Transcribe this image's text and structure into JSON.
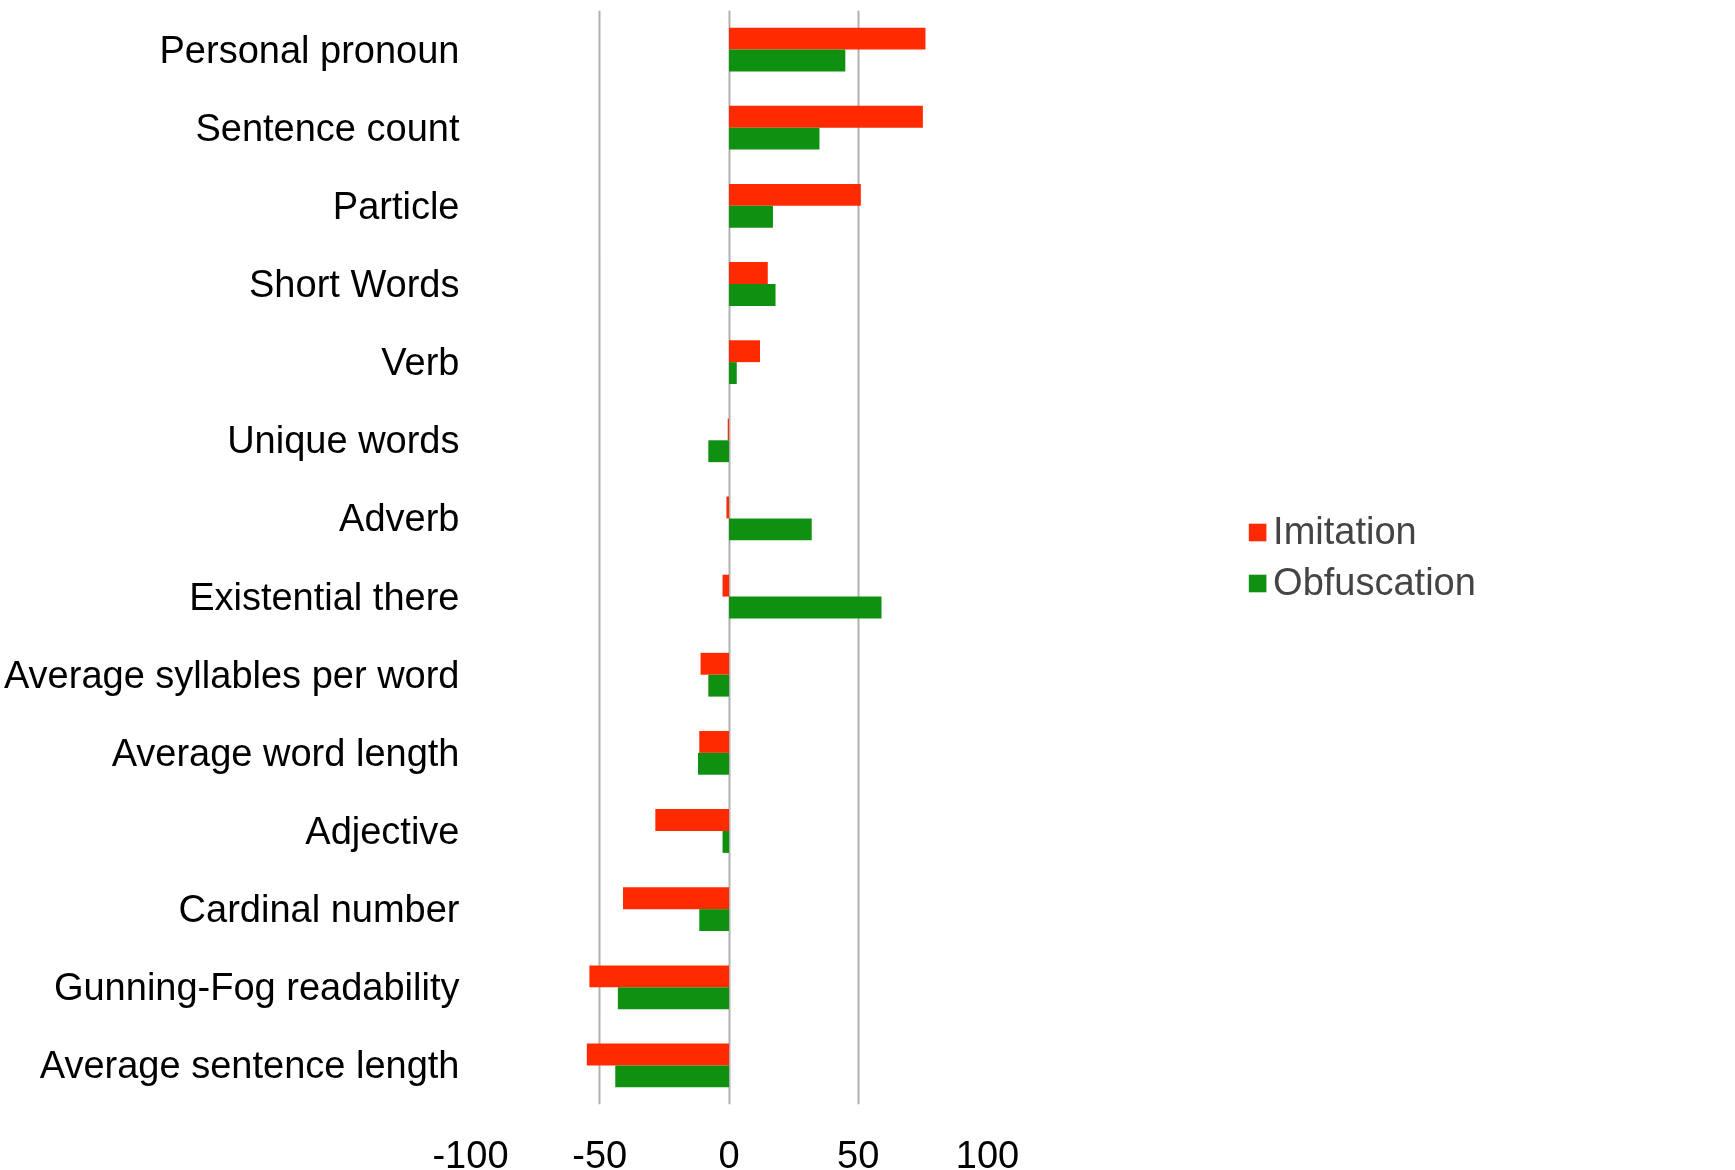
{
  "chart_data": {
    "type": "bar",
    "orientation": "horizontal",
    "categories": [
      "Personal pronoun",
      "Sentence count",
      "Particle",
      "Short Words",
      "Verb",
      "Unique words",
      "Adverb",
      "Existential there",
      "Average syllables per word",
      "Average word length",
      "Adjective",
      "Cardinal number",
      "Gunning-Fog readability",
      "Average sentence length"
    ],
    "series": [
      {
        "name": "Imitation",
        "color": "#ff2a00",
        "values": [
          76,
          75,
          51,
          15,
          12,
          -0.5,
          -1,
          -2.5,
          -11,
          -11.5,
          -28.5,
          -41,
          -54,
          -55
        ]
      },
      {
        "name": "Obfuscation",
        "color": "#109010",
        "values": [
          45,
          35,
          17,
          18,
          3,
          -8,
          32,
          59,
          -8,
          -12,
          -2.5,
          -11.5,
          -43,
          -44
        ]
      }
    ],
    "xlim": [
      -100,
      100
    ],
    "xticks": [
      -100,
      -50,
      0,
      50,
      100
    ],
    "grid": "x",
    "legend": "right"
  }
}
